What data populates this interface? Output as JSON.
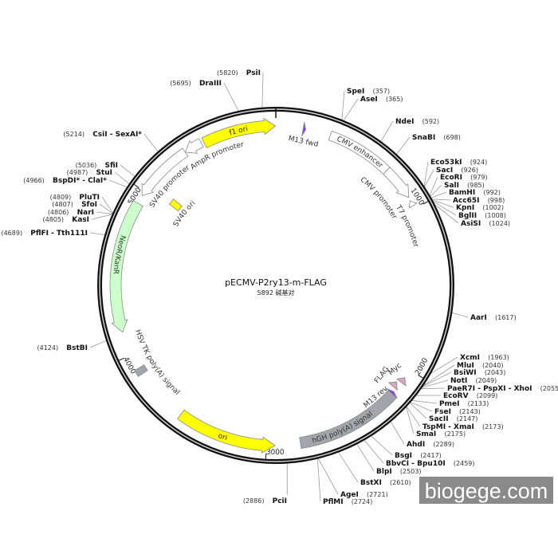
{
  "plasmid": {
    "name": "pECMV-P2ry13-m-FLAG",
    "size_label": "5892 碱基对",
    "length_bp": 5892
  },
  "colors": {
    "backbone": "#111111",
    "yellow_feature": "#ffff00",
    "white_feature": "#ffffff",
    "green_feature": "#ccffcc",
    "gray_feature": "#a1a6ad",
    "purple_feature": "#9933ff",
    "pink_feature": "#d9a3bf",
    "leader_line": "#9a9a9a",
    "watermark_bg": "#8a8a8a"
  },
  "ticks": [
    {
      "pos": 1000,
      "label": "1000"
    },
    {
      "pos": 2000,
      "label": "2000"
    },
    {
      "pos": 3000,
      "label": "3000"
    },
    {
      "pos": 4000,
      "label": "4000"
    },
    {
      "pos": 5000,
      "label": "5000"
    }
  ],
  "features": [
    {
      "name": "f1 ori",
      "start": 5455,
      "end": 5890,
      "direction": "forward",
      "color": "#ffff00"
    },
    {
      "name": "AmpR promoter",
      "start": 5332,
      "end": 5440,
      "direction": "reverse",
      "color": "#ffffff"
    },
    {
      "name": "SV40 promoter",
      "start": 4973,
      "end": 5332,
      "direction": "reverse",
      "color": "#ffffff"
    },
    {
      "name": "SV40 ori",
      "start": 5030,
      "end": 5076,
      "direction": "none",
      "color": "#ffff00"
    },
    {
      "name": "NeoR/KanR",
      "start": 4141,
      "end": 4923,
      "direction": "reverse",
      "color": "#ccffcc"
    },
    {
      "name": "HSV TK poly(A) signal",
      "start": 3870,
      "end": 3910,
      "direction": "none",
      "color": "#a1a6ad"
    },
    {
      "name": "ori",
      "start": 2950,
      "end": 3541,
      "direction": "reverse",
      "color": "#ffff00"
    },
    {
      "name": "hGH poly(A) signal",
      "start": 2176,
      "end": 2801,
      "direction": "none",
      "color": "#a1a6ad"
    },
    {
      "name": "M13 rev",
      "start": 2160,
      "end": 2176,
      "direction": "reverse",
      "color": "#9933ff"
    },
    {
      "name": "FLAG",
      "start": 2105,
      "end": 2140,
      "direction": "reverse",
      "color": "#d9a3bf"
    },
    {
      "name": "Myc",
      "start": 2055,
      "end": 2090,
      "direction": "reverse",
      "color": "#d9a3bf"
    },
    {
      "name": "M13 fwd",
      "start": 162,
      "end": 178,
      "direction": "forward",
      "color": "#9933ff"
    },
    {
      "name": "CMV enhancer",
      "start": 327,
      "end": 720,
      "direction": "none",
      "color": "#ffffff"
    },
    {
      "name": "CMV promoter",
      "start": 720,
      "end": 925,
      "direction": "forward",
      "color": "#ffffff"
    },
    {
      "name": "T7 promoter",
      "start": 945,
      "end": 980,
      "direction": "reverse",
      "color": "#ffffff"
    }
  ],
  "sites": [
    {
      "name": "SpeI",
      "pos": 357
    },
    {
      "name": "AseI",
      "pos": 365
    },
    {
      "name": "NdeI",
      "pos": 592
    },
    {
      "name": "SnaBI",
      "pos": 698
    },
    {
      "name": "Eco53kI",
      "pos": 924
    },
    {
      "name": "SacI",
      "pos": 926
    },
    {
      "name": "EcoRI",
      "pos": 979
    },
    {
      "name": "SalI",
      "pos": 985
    },
    {
      "name": "BamHI",
      "pos": 992
    },
    {
      "name": "Acc65I",
      "pos": 998
    },
    {
      "name": "KpnI",
      "pos": 1002
    },
    {
      "name": "BglII",
      "pos": 1008
    },
    {
      "name": "AsiSI",
      "pos": 1024
    },
    {
      "name": "AarI",
      "pos": 1617
    },
    {
      "name": "XcmI",
      "pos": 1963
    },
    {
      "name": "MluI",
      "pos": 2040
    },
    {
      "name": "BsiWI",
      "pos": 2043
    },
    {
      "name": "NotI",
      "pos": 2049
    },
    {
      "name": "PaeR7I - PspXI - XhoI",
      "pos": 2055
    },
    {
      "name": "EcoRV",
      "pos": 2099
    },
    {
      "name": "PmeI",
      "pos": 2133
    },
    {
      "name": "FseI",
      "pos": 2143
    },
    {
      "name": "SacII",
      "pos": 2147
    },
    {
      "name": "TspMI - XmaI",
      "pos": 2173
    },
    {
      "name": "SmaI",
      "pos": 2175
    },
    {
      "name": "AhdI",
      "pos": 2289
    },
    {
      "name": "BsgI",
      "pos": 2417
    },
    {
      "name": "BbvCI - Bpu10I",
      "pos": 2459
    },
    {
      "name": "BlpI",
      "pos": 2503
    },
    {
      "name": "BstXI",
      "pos": 2610
    },
    {
      "name": "AgeI",
      "pos": 2721
    },
    {
      "name": "PflMI",
      "pos": 2724
    },
    {
      "name": "PciI",
      "pos": 2886
    },
    {
      "name": "BstBI",
      "pos": 4124
    },
    {
      "name": "PflFI - Tth111I",
      "pos": 4689
    },
    {
      "name": "KasI",
      "pos": 4805
    },
    {
      "name": "NarI",
      "pos": 4806
    },
    {
      "name": "SfoI",
      "pos": 4807
    },
    {
      "name": "PluTI",
      "pos": 4809
    },
    {
      "name": "BspDI* - ClaI*",
      "pos": 4966
    },
    {
      "name": "StuI",
      "pos": 4987
    },
    {
      "name": "SfiI",
      "pos": 5036
    },
    {
      "name": "CsiI - SexAI*",
      "pos": 5214
    },
    {
      "name": "DraIII",
      "pos": 5695
    },
    {
      "name": "PsiI",
      "pos": 5820
    }
  ],
  "watermark": "biogege.com"
}
